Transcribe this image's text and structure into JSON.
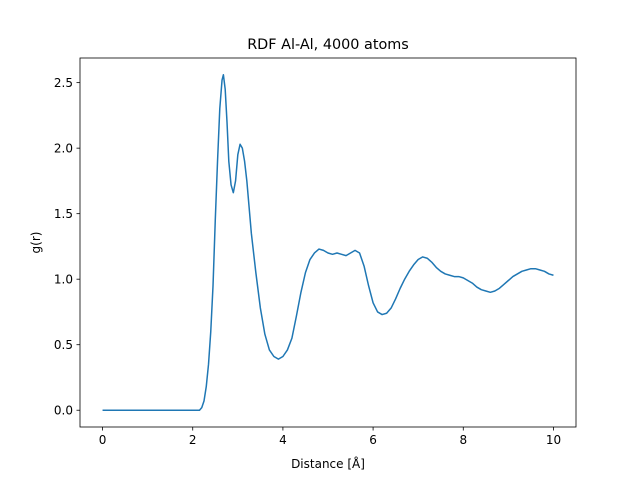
{
  "chart_data": {
    "type": "line",
    "title": "RDF Al-Al, 4000 atoms",
    "xlabel": "Distance [Å]",
    "ylabel": "g(r)",
    "xlim": [
      -0.5,
      10.5
    ],
    "ylim": [
      -0.128,
      2.688
    ],
    "xticks": [
      0,
      2,
      4,
      6,
      8,
      10
    ],
    "yticks": [
      0.0,
      0.5,
      1.0,
      1.5,
      2.0,
      2.5
    ],
    "xtick_labels": [
      "0",
      "2",
      "4",
      "6",
      "8",
      "10"
    ],
    "ytick_labels": [
      "0.0",
      "0.5",
      "1.0",
      "1.5",
      "2.0",
      "2.5"
    ],
    "grid": false,
    "legend": false,
    "series": [
      {
        "color": "#1f77b4",
        "x": [
          0,
          1.0,
          2.0,
          2.15,
          2.2,
          2.25,
          2.3,
          2.35,
          2.4,
          2.45,
          2.5,
          2.55,
          2.6,
          2.65,
          2.68,
          2.72,
          2.76,
          2.8,
          2.85,
          2.9,
          2.95,
          3.0,
          3.05,
          3.1,
          3.15,
          3.2,
          3.25,
          3.3,
          3.4,
          3.5,
          3.6,
          3.7,
          3.8,
          3.9,
          4.0,
          4.1,
          4.2,
          4.3,
          4.4,
          4.5,
          4.6,
          4.7,
          4.8,
          4.9,
          5.0,
          5.1,
          5.2,
          5.3,
          5.4,
          5.5,
          5.6,
          5.7,
          5.8,
          5.9,
          6.0,
          6.1,
          6.2,
          6.3,
          6.4,
          6.5,
          6.6,
          6.7,
          6.8,
          6.9,
          7.0,
          7.1,
          7.2,
          7.3,
          7.4,
          7.5,
          7.6,
          7.7,
          7.8,
          7.9,
          8.0,
          8.1,
          8.2,
          8.3,
          8.4,
          8.5,
          8.6,
          8.7,
          8.8,
          8.9,
          9.0,
          9.1,
          9.2,
          9.3,
          9.4,
          9.5,
          9.6,
          9.7,
          9.8,
          9.9,
          10.0
        ],
        "y": [
          0.0,
          0.0,
          0.0,
          0.0,
          0.02,
          0.07,
          0.18,
          0.35,
          0.6,
          0.95,
          1.45,
          1.9,
          2.3,
          2.52,
          2.56,
          2.45,
          2.2,
          1.9,
          1.72,
          1.66,
          1.75,
          1.95,
          2.03,
          2.0,
          1.9,
          1.75,
          1.55,
          1.35,
          1.05,
          0.78,
          0.58,
          0.46,
          0.41,
          0.39,
          0.41,
          0.46,
          0.55,
          0.72,
          0.9,
          1.05,
          1.15,
          1.2,
          1.23,
          1.22,
          1.2,
          1.19,
          1.2,
          1.19,
          1.18,
          1.2,
          1.22,
          1.2,
          1.1,
          0.95,
          0.82,
          0.75,
          0.73,
          0.74,
          0.78,
          0.85,
          0.93,
          1.0,
          1.06,
          1.11,
          1.15,
          1.17,
          1.16,
          1.13,
          1.09,
          1.06,
          1.04,
          1.03,
          1.02,
          1.02,
          1.01,
          0.99,
          0.97,
          0.94,
          0.92,
          0.91,
          0.9,
          0.91,
          0.93,
          0.96,
          0.99,
          1.02,
          1.04,
          1.06,
          1.07,
          1.08,
          1.08,
          1.07,
          1.06,
          1.04,
          1.03
        ]
      }
    ]
  }
}
